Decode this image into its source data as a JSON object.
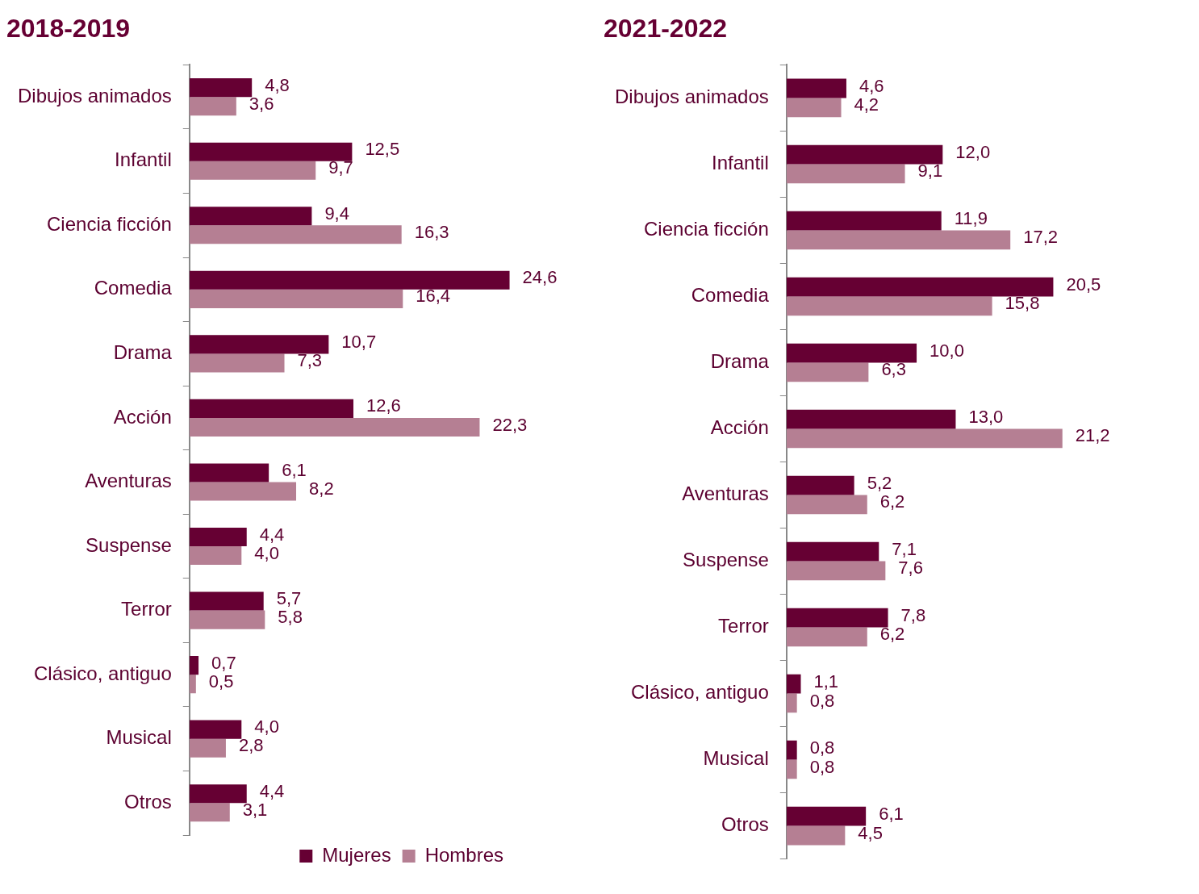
{
  "chart_data": [
    {
      "type": "bar",
      "orientation": "horizontal",
      "title": "2018-2019",
      "categories": [
        "Dibujos animados",
        "Infantil",
        "Ciencia ficción",
        "Comedia",
        "Drama",
        "Acción",
        "Aventuras",
        "Suspense",
        "Terror",
        "Clásico, antiguo",
        "Musical",
        "Otros"
      ],
      "legend": "bottom right",
      "series": [
        {
          "name": "Mujeres",
          "color": "#660033",
          "values": [
            4.8,
            12.5,
            9.4,
            24.6,
            10.7,
            12.6,
            6.1,
            4.4,
            5.7,
            0.7,
            4.0,
            4.4
          ],
          "value_labels": [
            "4,8",
            "12,5",
            "9,4",
            "24,6",
            "10,7",
            "12,6",
            "6,1",
            "4,4",
            "5,7",
            "0,7",
            "4,0",
            "4,4"
          ]
        },
        {
          "name": "Hombres",
          "color": "#b57f93",
          "values": [
            3.6,
            9.7,
            16.3,
            16.4,
            7.3,
            22.3,
            8.2,
            4.0,
            5.8,
            0.5,
            2.8,
            3.1
          ],
          "value_labels": [
            "3,6",
            "9,7",
            "16,3",
            "16,4",
            "7,3",
            "22,3",
            "8,2",
            "4,0",
            "5,8",
            "0,5",
            "2,8",
            "3,1"
          ]
        }
      ]
    },
    {
      "type": "bar",
      "orientation": "horizontal",
      "title": "2021-2022",
      "categories": [
        "Dibujos animados",
        "Infantil",
        "Ciencia ficción",
        "Comedia",
        "Drama",
        "Acción",
        "Aventuras",
        "Suspense",
        "Terror",
        "Clásico, antiguo",
        "Musical",
        "Otros"
      ],
      "series": [
        {
          "color": "#660033",
          "values": [
            4.6,
            12.0,
            11.9,
            20.5,
            10.0,
            13.0,
            5.2,
            7.1,
            7.8,
            1.1,
            0.8,
            6.1
          ],
          "value_labels": [
            "4,6",
            "12,0",
            "11,9",
            "20,5",
            "10,0",
            "13,0",
            "5,2",
            "7,1",
            "7,8",
            "1,1",
            "0,8",
            "6,1"
          ]
        },
        {
          "color": "#b57f93",
          "values": [
            4.2,
            9.1,
            17.2,
            15.8,
            6.3,
            21.2,
            6.2,
            7.6,
            6.2,
            0.8,
            0.8,
            4.5
          ],
          "value_labels": [
            "4,2",
            "9,1",
            "17,2",
            "15,8",
            "6,3",
            "21,2",
            "6,2",
            "7,6",
            "6,2",
            "0,8",
            "0,8",
            "4,5"
          ]
        }
      ]
    }
  ]
}
